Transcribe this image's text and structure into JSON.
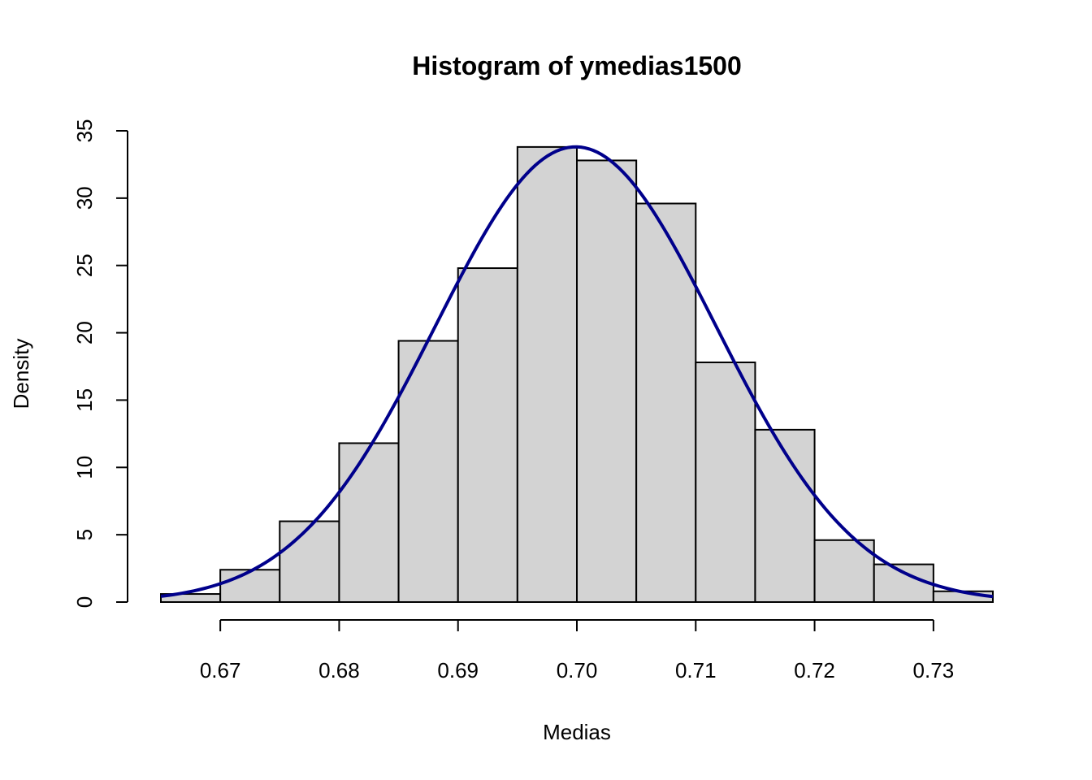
{
  "chart_data": {
    "type": "bar",
    "title": "Histogram of ymedias1500",
    "xlabel": "Medias",
    "ylabel": "Density",
    "xlim": [
      0.665,
      0.735
    ],
    "ylim": [
      0,
      35
    ],
    "x_ticks": [
      0.67,
      0.68,
      0.69,
      0.7,
      0.71,
      0.72,
      0.73
    ],
    "x_tick_labels": [
      "0.67",
      "0.68",
      "0.69",
      "0.70",
      "0.71",
      "0.72",
      "0.73"
    ],
    "y_ticks": [
      0,
      5,
      10,
      15,
      20,
      25,
      30,
      35
    ],
    "y_tick_labels": [
      "0",
      "5",
      "10",
      "15",
      "20",
      "25",
      "30",
      "35"
    ],
    "bins": [
      {
        "start": 0.665,
        "end": 0.67,
        "density": 0.6
      },
      {
        "start": 0.67,
        "end": 0.675,
        "density": 2.4
      },
      {
        "start": 0.675,
        "end": 0.68,
        "density": 6.0
      },
      {
        "start": 0.68,
        "end": 0.685,
        "density": 11.8
      },
      {
        "start": 0.685,
        "end": 0.69,
        "density": 19.4
      },
      {
        "start": 0.69,
        "end": 0.695,
        "density": 24.8
      },
      {
        "start": 0.695,
        "end": 0.7,
        "density": 33.8
      },
      {
        "start": 0.7,
        "end": 0.705,
        "density": 32.8
      },
      {
        "start": 0.705,
        "end": 0.71,
        "density": 29.6
      },
      {
        "start": 0.71,
        "end": 0.715,
        "density": 17.8
      },
      {
        "start": 0.715,
        "end": 0.72,
        "density": 12.8
      },
      {
        "start": 0.72,
        "end": 0.725,
        "density": 4.6
      },
      {
        "start": 0.725,
        "end": 0.73,
        "density": 2.8
      },
      {
        "start": 0.73,
        "end": 0.735,
        "density": 0.8
      }
    ],
    "density_curve": {
      "type": "normal",
      "mean": 0.6999,
      "sd": 0.0118,
      "color": "#00008B"
    },
    "bar_fill": "#D3D3D3",
    "bar_stroke": "#000000",
    "grid": false,
    "legend": "none"
  }
}
